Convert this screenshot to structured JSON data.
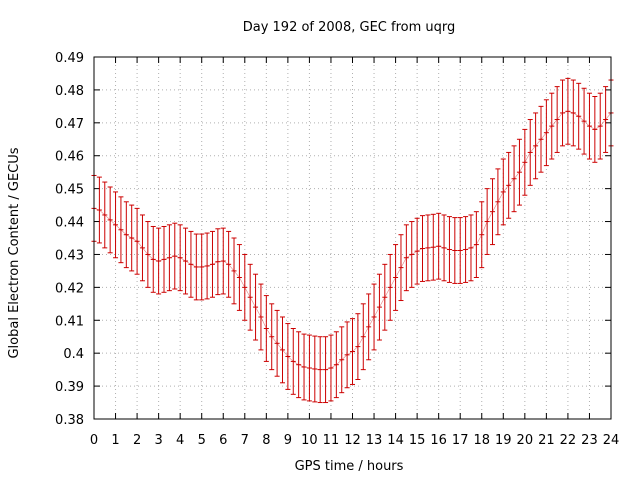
{
  "chart_data": {
    "type": "line",
    "title": "Day 192 of 2008, GEC from uqrg",
    "xlabel": "GPS time / hours",
    "ylabel": "Global Electron Content / GECUs",
    "xlim": [
      0,
      24
    ],
    "ylim": [
      0.38,
      0.49
    ],
    "xticks": [
      0,
      1,
      2,
      3,
      4,
      5,
      6,
      7,
      8,
      9,
      10,
      11,
      12,
      13,
      14,
      15,
      16,
      17,
      18,
      19,
      20,
      21,
      22,
      23,
      24
    ],
    "yticks": [
      0.38,
      0.39,
      0.4,
      0.41,
      0.42,
      0.43,
      0.44,
      0.45,
      0.46,
      0.47,
      0.48,
      0.49
    ],
    "ytick_labels": [
      "0.38",
      "0.39",
      "0.4",
      "0.41",
      "0.42",
      "0.43",
      "0.44",
      "0.45",
      "0.46",
      "0.47",
      "0.48",
      "0.49"
    ],
    "grid": true,
    "series_color": "#cc0000",
    "error": 0.01,
    "x": [
      0,
      0.25,
      0.5,
      0.75,
      1,
      1.25,
      1.5,
      1.75,
      2,
      2.25,
      2.5,
      2.75,
      3,
      3.25,
      3.5,
      3.75,
      4,
      4.25,
      4.5,
      4.75,
      5,
      5.25,
      5.5,
      5.75,
      6,
      6.25,
      6.5,
      6.75,
      7,
      7.25,
      7.5,
      7.75,
      8,
      8.25,
      8.5,
      8.75,
      9,
      9.25,
      9.5,
      9.75,
      10,
      10.25,
      10.5,
      10.75,
      11,
      11.25,
      11.5,
      11.75,
      12,
      12.25,
      12.5,
      12.75,
      13,
      13.25,
      13.5,
      13.75,
      14,
      14.25,
      14.5,
      14.75,
      15,
      15.25,
      15.5,
      15.75,
      16,
      16.25,
      16.5,
      16.75,
      17,
      17.25,
      17.5,
      17.75,
      18,
      18.25,
      18.5,
      18.75,
      19,
      19.25,
      19.5,
      19.75,
      20,
      20.25,
      20.5,
      20.75,
      21,
      21.25,
      21.5,
      21.75,
      22,
      22.25,
      22.5,
      22.75,
      23,
      23.25,
      23.5,
      23.75,
      24
    ],
    "y": [
      0.444,
      0.4435,
      0.442,
      0.4405,
      0.439,
      0.4375,
      0.436,
      0.435,
      0.434,
      0.432,
      0.43,
      0.4285,
      0.428,
      0.4285,
      0.429,
      0.4295,
      0.429,
      0.428,
      0.427,
      0.4262,
      0.4262,
      0.4265,
      0.427,
      0.4278,
      0.428,
      0.427,
      0.425,
      0.423,
      0.42,
      0.417,
      0.414,
      0.411,
      0.4075,
      0.405,
      0.403,
      0.401,
      0.399,
      0.3975,
      0.3965,
      0.3958,
      0.3955,
      0.3952,
      0.395,
      0.395,
      0.3955,
      0.3965,
      0.398,
      0.3995,
      0.4005,
      0.402,
      0.405,
      0.408,
      0.411,
      0.414,
      0.417,
      0.42,
      0.423,
      0.426,
      0.429,
      0.43,
      0.431,
      0.4318,
      0.432,
      0.4322,
      0.4325,
      0.432,
      0.4315,
      0.4312,
      0.4312,
      0.4315,
      0.432,
      0.433,
      0.436,
      0.44,
      0.443,
      0.446,
      0.449,
      0.451,
      0.453,
      0.455,
      0.458,
      0.461,
      0.463,
      0.465,
      0.467,
      0.469,
      0.471,
      0.473,
      0.4735,
      0.473,
      0.472,
      0.4705,
      0.469,
      0.468,
      0.469,
      0.471,
      0.473
    ]
  }
}
